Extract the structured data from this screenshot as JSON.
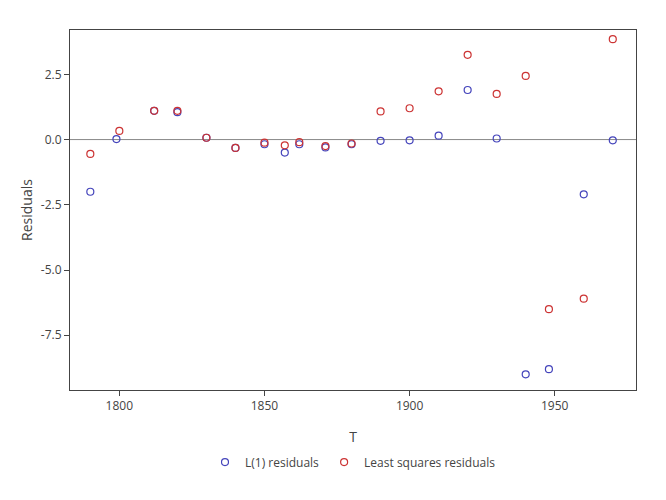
{
  "chart_data": {
    "type": "scatter",
    "xlabel": "T",
    "ylabel": "Residuals",
    "xlim": [
      1783,
      1978
    ],
    "ylim": [
      -9.6,
      4.2
    ],
    "xticks": [
      1800,
      1850,
      1900,
      1950
    ],
    "yticks": [
      2.5,
      {
        "value": 0,
        "label": "0.0"
      },
      -2.5,
      {
        "value": -5,
        "label": "-5.0"
      },
      {
        "value": -7.5,
        "label": "-7.5"
      }
    ],
    "hline_y": 0,
    "grid": false,
    "legend": "bottom",
    "marker": "open_circle",
    "series": [
      {
        "name": "L(1) residuals",
        "color": "#4444bb",
        "x": [
          1790,
          1799,
          1812,
          1820,
          1830,
          1840,
          1850,
          1857,
          1862,
          1871,
          1880,
          1890,
          1900,
          1910,
          1920,
          1930,
          1940,
          1948,
          1960,
          1970
        ],
        "values": [
          -2.0,
          0.02,
          1.1,
          1.05,
          0.07,
          -0.32,
          -0.18,
          -0.5,
          -0.18,
          -0.3,
          -0.18,
          -0.05,
          -0.03,
          0.15,
          1.9,
          0.04,
          -9.0,
          -8.8,
          -2.1,
          -0.03
        ]
      },
      {
        "name": "Least squares residuals",
        "color": "#cc3333",
        "x": [
          1790,
          1800,
          1812,
          1820,
          1830,
          1840,
          1850,
          1857,
          1862,
          1871,
          1880,
          1890,
          1900,
          1910,
          1920,
          1930,
          1940,
          1948,
          1960,
          1970
        ],
        "values": [
          -0.55,
          0.33,
          1.1,
          1.1,
          0.07,
          -0.32,
          -0.12,
          -0.22,
          -0.1,
          -0.25,
          -0.15,
          1.08,
          1.2,
          1.85,
          3.25,
          1.75,
          2.44,
          -6.5,
          -6.1,
          3.85
        ]
      }
    ]
  }
}
